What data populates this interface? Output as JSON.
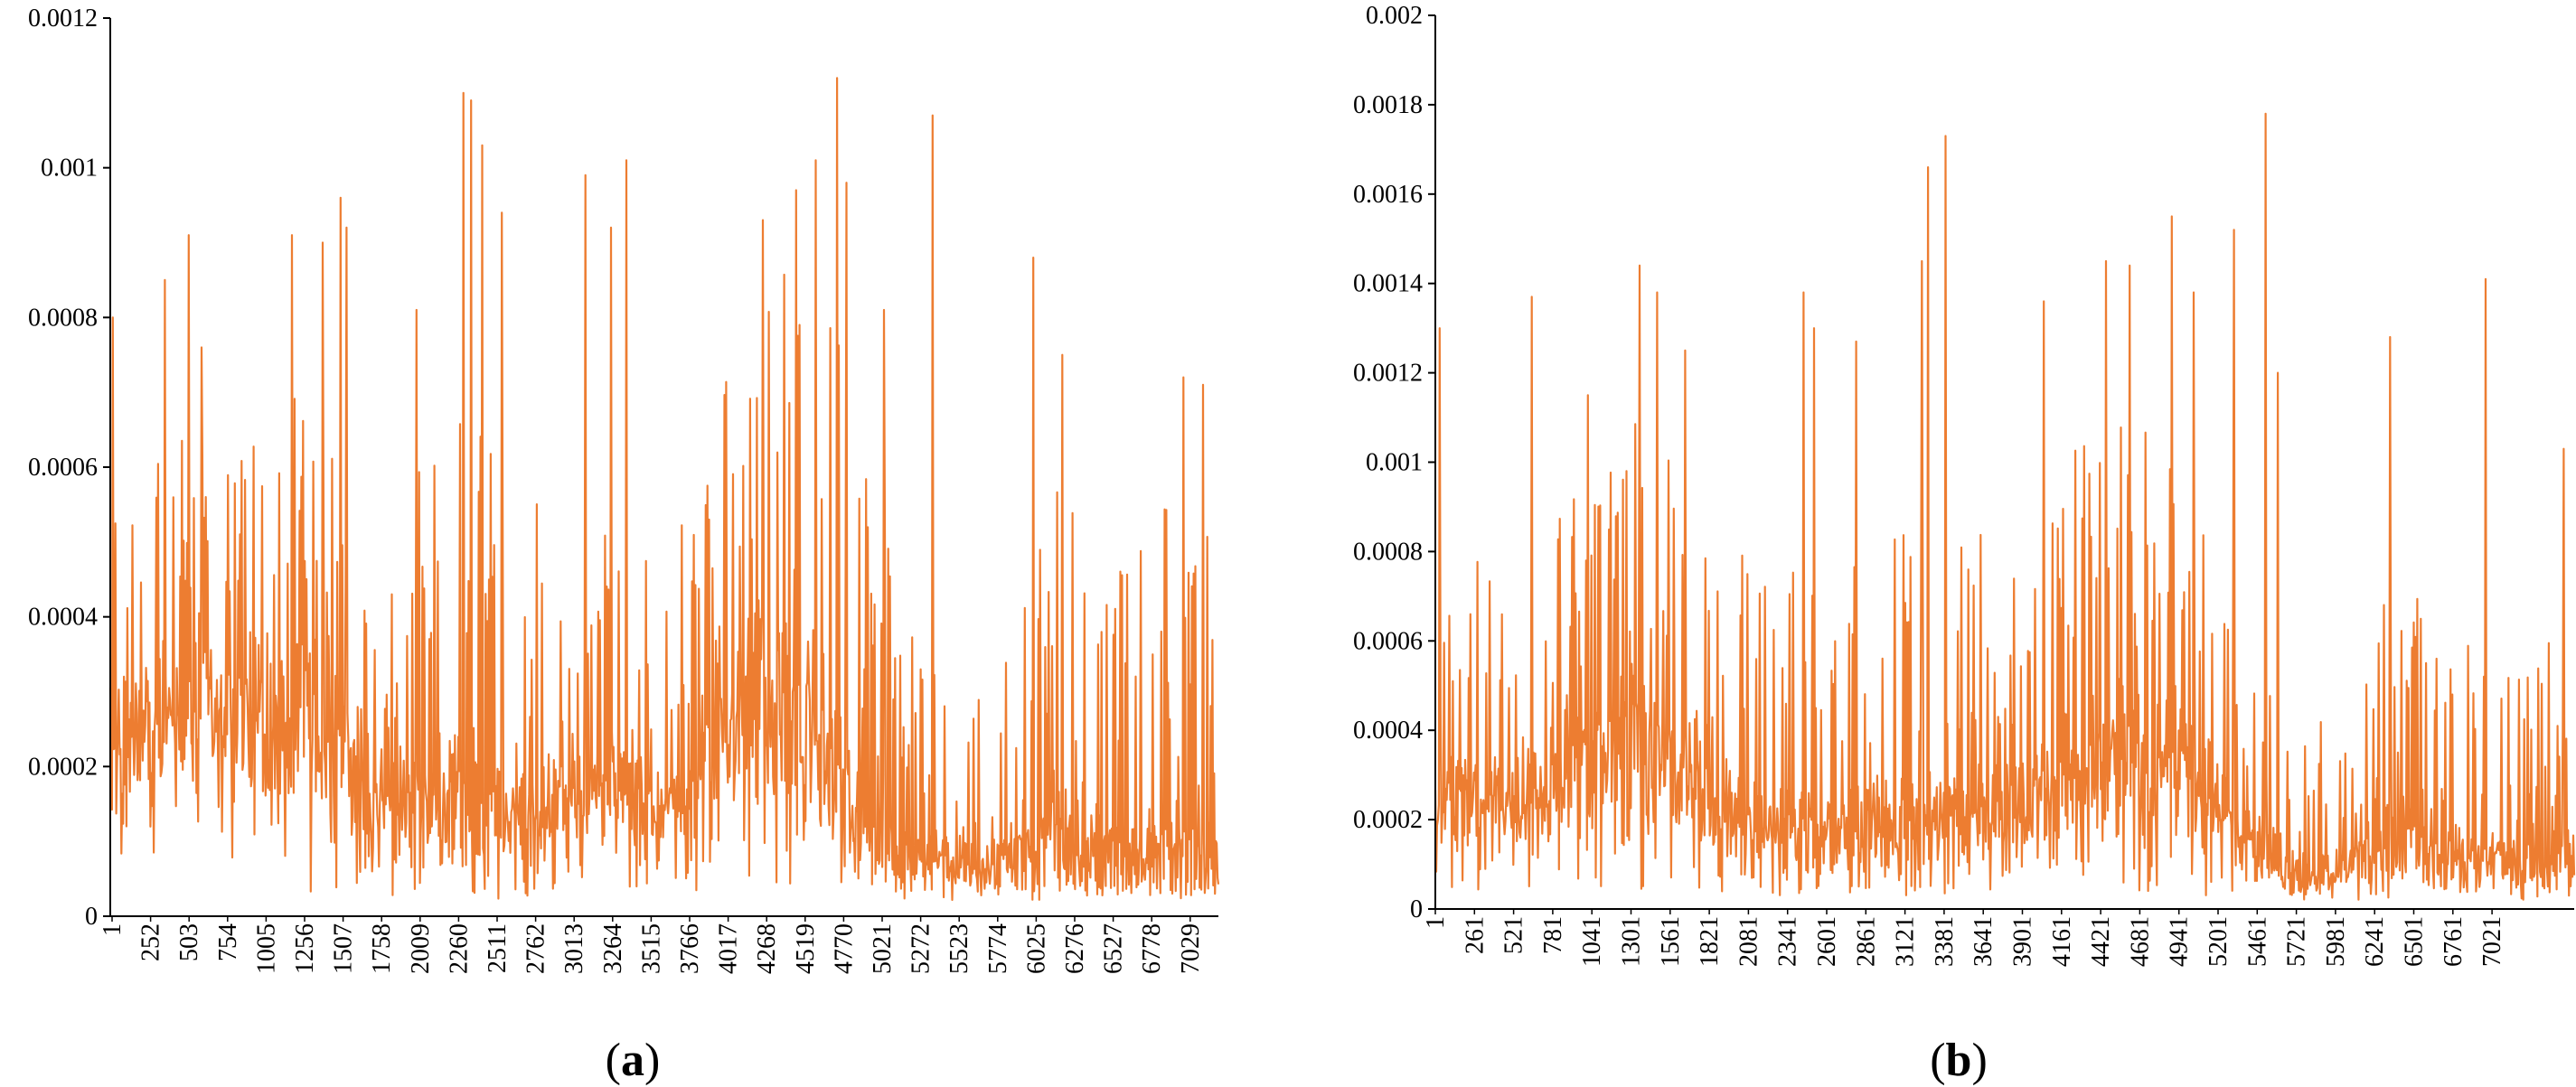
{
  "colors": {
    "series": "#ED7D31",
    "axis": "#000000"
  },
  "chart_data": [
    {
      "type": "line",
      "panel_label": "a",
      "x_ticks": [
        "1",
        "252",
        "503",
        "754",
        "1005",
        "1256",
        "1507",
        "1758",
        "2009",
        "2260",
        "2511",
        "2762",
        "3013",
        "3264",
        "3515",
        "3766",
        "4017",
        "4268",
        "4519",
        "4770",
        "5021",
        "5272",
        "5523",
        "5774",
        "6025",
        "6276",
        "6527",
        "6778",
        "7029"
      ],
      "y_ticks": [
        "0",
        "0.0002",
        "0.0004",
        "0.0006",
        "0.0008",
        "0.001",
        "0.0012"
      ],
      "ylim": [
        0,
        0.0012
      ],
      "xlim": [
        1,
        7300
      ],
      "grid": false,
      "series": [
        {
          "x": [
            1,
            200,
            400,
            600,
            800,
            1000,
            1200,
            1400,
            1600,
            1800,
            2000,
            2200,
            2400,
            2600,
            2800,
            3000,
            3200,
            3400,
            3600,
            3800,
            4000,
            4200,
            4400,
            4600,
            4800,
            5000,
            5200,
            5400,
            5600,
            5800,
            6000,
            6200,
            6400,
            6600,
            6800,
            7000,
            7280
          ],
          "env_min": [
            5e-05,
            4e-05,
            6e-05,
            7e-05,
            6e-05,
            4e-05,
            3e-05,
            2e-05,
            2e-05,
            2e-05,
            2e-05,
            3e-05,
            2e-05,
            2e-05,
            3e-05,
            4e-05,
            5e-05,
            4e-05,
            3e-05,
            3e-05,
            3e-05,
            3e-05,
            2e-05,
            2e-05,
            3e-05,
            2e-05,
            2e-05,
            2e-05,
            2e-05,
            2e-05,
            2e-05,
            2e-05,
            2e-05,
            2e-05,
            2e-05,
            2e-05,
            2e-05
          ],
          "env_low": [
            0.00012,
            0.00016,
            0.0002,
            0.00022,
            0.0002,
            0.00016,
            0.00016,
            0.00014,
            0.0001,
            8e-05,
            8e-05,
            0.0001,
            8e-05,
            8e-05,
            0.0001,
            0.00012,
            0.00014,
            0.00012,
            0.0001,
            0.00012,
            0.00016,
            0.00018,
            0.00016,
            0.00014,
            0.0001,
            8e-05,
            6e-05,
            4e-05,
            4e-05,
            4e-05,
            6e-05,
            6e-05,
            4e-05,
            4e-05,
            4e-05,
            6e-05,
            4e-05
          ],
          "env_mid": [
            0.0003,
            0.00034,
            0.0004,
            0.00042,
            0.0004,
            0.00042,
            0.0005,
            0.0004,
            0.0003,
            0.00024,
            0.00022,
            0.00026,
            0.00022,
            0.0002,
            0.00022,
            0.00024,
            0.00026,
            0.00024,
            0.0002,
            0.00024,
            0.00034,
            0.0004,
            0.00044,
            0.0004,
            0.00034,
            0.00022,
            0.00014,
            0.00012,
            0.0001,
            0.0001,
            0.00014,
            0.0002,
            0.00016,
            0.00014,
            0.00014,
            0.00016,
            0.00014
          ],
          "env_high": [
            0.0006,
            0.0006,
            0.00065,
            0.0007,
            0.0006,
            0.0007,
            0.00078,
            0.00068,
            0.0005,
            0.00045,
            0.00055,
            0.0008,
            0.00072,
            0.00055,
            0.0006,
            0.0006,
            0.0006,
            0.00055,
            0.0005,
            0.0006,
            0.0007,
            0.0008,
            0.00085,
            0.0009,
            0.0008,
            0.0006,
            0.00045,
            0.00035,
            0.0003,
            0.00035,
            0.00045,
            0.0006,
            0.00055,
            0.0005,
            0.0005,
            0.0006,
            0.0005
          ],
          "peaks": [
            {
              "x": 20,
              "y": 0.0008
            },
            {
              "x": 360,
              "y": 0.00085
            },
            {
              "x": 520,
              "y": 0.00091
            },
            {
              "x": 600,
              "y": 0.00076
            },
            {
              "x": 1200,
              "y": 0.00091
            },
            {
              "x": 1400,
              "y": 0.0009
            },
            {
              "x": 1520,
              "y": 0.00096
            },
            {
              "x": 1560,
              "y": 0.00092
            },
            {
              "x": 2020,
              "y": 0.00081
            },
            {
              "x": 2330,
              "y": 0.0011
            },
            {
              "x": 2380,
              "y": 0.00109
            },
            {
              "x": 2450,
              "y": 0.00103
            },
            {
              "x": 2580,
              "y": 0.00094
            },
            {
              "x": 3130,
              "y": 0.00099
            },
            {
              "x": 3400,
              "y": 0.00101
            },
            {
              "x": 3300,
              "y": 0.00092
            },
            {
              "x": 4300,
              "y": 0.00093
            },
            {
              "x": 4520,
              "y": 0.00097
            },
            {
              "x": 4650,
              "y": 0.00101
            },
            {
              "x": 4790,
              "y": 0.00112
            },
            {
              "x": 4850,
              "y": 0.00098
            },
            {
              "x": 5100,
              "y": 0.00081
            },
            {
              "x": 5420,
              "y": 0.00107
            },
            {
              "x": 6080,
              "y": 0.00088
            },
            {
              "x": 6270,
              "y": 0.00075
            },
            {
              "x": 7070,
              "y": 0.00072
            },
            {
              "x": 7200,
              "y": 0.00071
            }
          ]
        }
      ]
    },
    {
      "type": "line",
      "panel_label": "b",
      "x_ticks": [
        "1",
        "261",
        "521",
        "781",
        "1041",
        "1301",
        "1561",
        "1821",
        "2081",
        "2341",
        "2601",
        "2861",
        "3121",
        "3381",
        "3641",
        "3901",
        "4161",
        "4421",
        "4681",
        "4941",
        "5201",
        "5461",
        "5721",
        "5981",
        "6241",
        "6501",
        "6761",
        "7021"
      ],
      "y_ticks": [
        "0",
        "0.0002",
        "0.0004",
        "0.0006",
        "0.0008",
        "0.001",
        "0.0012",
        "0.0014",
        "0.0016",
        "0.0018",
        "0.002"
      ],
      "ylim": [
        0,
        0.002
      ],
      "xlim": [
        1,
        7300
      ],
      "grid": false,
      "series": [
        {
          "x": [
            1,
            200,
            400,
            600,
            800,
            1000,
            1200,
            1400,
            1600,
            1800,
            2000,
            2200,
            2400,
            2600,
            2800,
            3000,
            3200,
            3400,
            3600,
            3800,
            4000,
            4200,
            4400,
            4600,
            4800,
            5000,
            5200,
            5400,
            5600,
            5800,
            6000,
            6200,
            6400,
            6600,
            6800,
            7000,
            7280
          ],
          "env_min": [
            3e-05,
            4e-05,
            4e-05,
            5e-05,
            4e-05,
            4e-05,
            4e-05,
            4e-05,
            4e-05,
            4e-05,
            3e-05,
            3e-05,
            3e-05,
            3e-05,
            3e-05,
            3e-05,
            3e-05,
            4e-05,
            4e-05,
            4e-05,
            4e-05,
            4e-05,
            4e-05,
            4e-05,
            3e-05,
            3e-05,
            3e-05,
            2e-05,
            2e-05,
            2e-05,
            2e-05,
            2e-05,
            2e-05,
            2e-05,
            2e-05,
            2e-05,
            2e-05
          ],
          "env_low": [
            0.00012,
            0.00014,
            0.00014,
            0.00016,
            0.00016,
            0.00018,
            0.00022,
            0.00022,
            0.00018,
            0.00014,
            0.00012,
            0.0001,
            0.0001,
            0.0001,
            0.0001,
            0.00012,
            0.00012,
            0.00014,
            0.00014,
            0.00014,
            0.00016,
            0.0002,
            0.0002,
            0.00018,
            0.00016,
            0.00012,
            8e-05,
            6e-05,
            4e-05,
            6e-05,
            6e-05,
            8e-05,
            6e-05,
            6e-05,
            6e-05,
            6e-05,
            6e-05
          ],
          "env_mid": [
            0.00035,
            0.00036,
            0.00036,
            0.0004,
            0.00044,
            0.0005,
            0.00058,
            0.00056,
            0.00046,
            0.00036,
            0.0003,
            0.00028,
            0.00028,
            0.00028,
            0.00028,
            0.0003,
            0.00032,
            0.00034,
            0.00034,
            0.00036,
            0.0004,
            0.0005,
            0.00054,
            0.00052,
            0.00046,
            0.00034,
            0.00024,
            0.00016,
            0.0001,
            0.00014,
            0.00022,
            0.00026,
            0.00022,
            0.00018,
            0.00018,
            0.0002,
            0.00018
          ],
          "env_high": [
            0.0008,
            0.0008,
            0.0008,
            0.0009,
            0.00095,
            0.001,
            0.00115,
            0.0011,
            0.0009,
            0.0008,
            0.0008,
            0.00085,
            0.0009,
            0.00085,
            0.00085,
            0.0009,
            0.00095,
            0.0009,
            0.00085,
            0.0009,
            0.00095,
            0.0011,
            0.0012,
            0.00115,
            0.001,
            0.00085,
            0.0007,
            0.0005,
            0.0004,
            0.0005,
            0.0007,
            0.0008,
            0.0007,
            0.0006,
            0.0006,
            0.0007,
            0.0006
          ],
          "peaks": [
            {
              "x": 30,
              "y": 0.0013
            },
            {
              "x": 620,
              "y": 0.00137
            },
            {
              "x": 980,
              "y": 0.00115
            },
            {
              "x": 1310,
              "y": 0.00144
            },
            {
              "x": 1420,
              "y": 0.00138
            },
            {
              "x": 1600,
              "y": 0.00125
            },
            {
              "x": 2360,
              "y": 0.00138
            },
            {
              "x": 2430,
              "y": 0.0013
            },
            {
              "x": 2700,
              "y": 0.00127
            },
            {
              "x": 3160,
              "y": 0.00166
            },
            {
              "x": 3270,
              "y": 0.00173
            },
            {
              "x": 3120,
              "y": 0.00145
            },
            {
              "x": 3900,
              "y": 0.00136
            },
            {
              "x": 4300,
              "y": 0.00145
            },
            {
              "x": 4450,
              "y": 0.00144
            },
            {
              "x": 4720,
              "y": 0.00155
            },
            {
              "x": 4860,
              "y": 0.00138
            },
            {
              "x": 5120,
              "y": 0.00152
            },
            {
              "x": 5320,
              "y": 0.00178
            },
            {
              "x": 5400,
              "y": 0.0012
            },
            {
              "x": 6120,
              "y": 0.00128
            },
            {
              "x": 6730,
              "y": 0.00141
            },
            {
              "x": 7230,
              "y": 0.00103
            }
          ]
        }
      ]
    }
  ]
}
